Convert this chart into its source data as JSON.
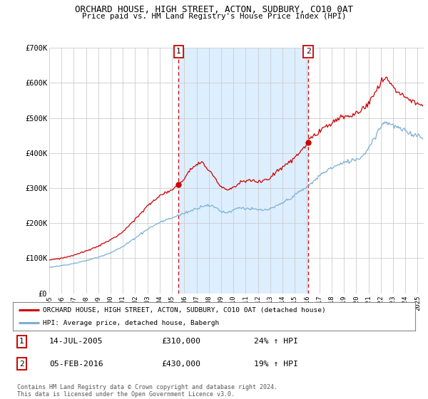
{
  "title": "ORCHARD HOUSE, HIGH STREET, ACTON, SUDBURY, CO10 0AT",
  "subtitle": "Price paid vs. HM Land Registry's House Price Index (HPI)",
  "legend_line1": "ORCHARD HOUSE, HIGH STREET, ACTON, SUDBURY, CO10 0AT (detached house)",
  "legend_line2": "HPI: Average price, detached house, Babergh",
  "footnote1": "Contains HM Land Registry data © Crown copyright and database right 2024.",
  "footnote2": "This data is licensed under the Open Government Licence v3.0.",
  "marker1_date": "14-JUL-2005",
  "marker1_price": "£310,000",
  "marker1_hpi": "24% ↑ HPI",
  "marker2_date": "05-FEB-2016",
  "marker2_price": "£430,000",
  "marker2_hpi": "19% ↑ HPI",
  "red_color": "#cc0000",
  "blue_color": "#7bafd4",
  "shade_color": "#ddeeff",
  "marker1_x": 2005.54,
  "marker1_y": 310000,
  "marker2_x": 2016.09,
  "marker2_y": 430000,
  "vline1_x": 2005.54,
  "vline2_x": 2016.09,
  "ylim": [
    0,
    700000
  ],
  "xlim_start": 1995.0,
  "xlim_end": 2025.5,
  "yticks": [
    0,
    100000,
    200000,
    300000,
    400000,
    500000,
    600000,
    700000
  ],
  "background_color": "#ffffff",
  "grid_color": "#cccccc"
}
